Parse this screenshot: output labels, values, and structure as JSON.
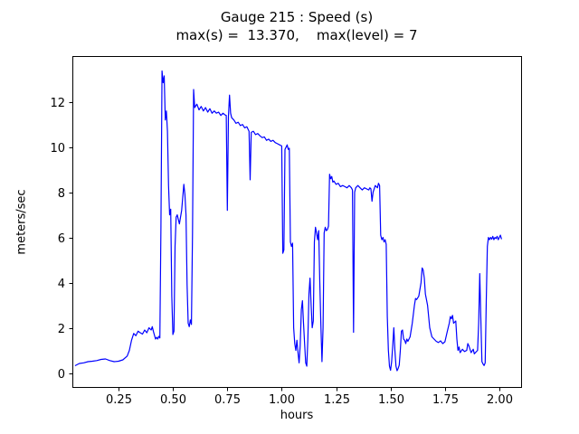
{
  "title": {
    "line1": "Gauge 215 : Speed (s)",
    "line2": "max(s) =  13.370,    max(level) = 7"
  },
  "chart_data": {
    "type": "line",
    "title": "Gauge 215 : Speed (s)",
    "subtitle": "max(s) =  13.370,    max(level) = 7",
    "xlabel": "hours",
    "ylabel": "meters/sec",
    "xlim": [
      0.038,
      2.1
    ],
    "ylim": [
      -0.62,
      14.03
    ],
    "grid": false,
    "legend": "none",
    "line_color": "#0000ff",
    "max_s": 13.37,
    "max_level": 7,
    "xticks": {
      "values": [
        0.25,
        0.5,
        0.75,
        1.0,
        1.25,
        1.5,
        1.75,
        2.0
      ],
      "labels": [
        "0.25",
        "0.50",
        "0.75",
        "1.00",
        "1.25",
        "1.50",
        "1.75",
        "2.00"
      ]
    },
    "yticks": {
      "values": [
        0,
        2,
        4,
        6,
        8,
        10,
        12
      ],
      "labels": [
        "0",
        "2",
        "4",
        "6",
        "8",
        "10",
        "12"
      ]
    },
    "series": [
      {
        "name": "speed",
        "points": [
          [
            0.05,
            0.32
          ],
          [
            0.07,
            0.42
          ],
          [
            0.09,
            0.45
          ],
          [
            0.11,
            0.5
          ],
          [
            0.13,
            0.52
          ],
          [
            0.15,
            0.55
          ],
          [
            0.17,
            0.6
          ],
          [
            0.19,
            0.62
          ],
          [
            0.21,
            0.55
          ],
          [
            0.23,
            0.5
          ],
          [
            0.25,
            0.52
          ],
          [
            0.27,
            0.58
          ],
          [
            0.29,
            0.75
          ],
          [
            0.3,
            1.0
          ],
          [
            0.31,
            1.45
          ],
          [
            0.32,
            1.75
          ],
          [
            0.33,
            1.65
          ],
          [
            0.34,
            1.85
          ],
          [
            0.35,
            1.78
          ],
          [
            0.36,
            1.72
          ],
          [
            0.37,
            1.9
          ],
          [
            0.38,
            1.78
          ],
          [
            0.39,
            2.0
          ],
          [
            0.4,
            1.9
          ],
          [
            0.405,
            2.05
          ],
          [
            0.41,
            1.85
          ],
          [
            0.42,
            1.5
          ],
          [
            0.425,
            1.58
          ],
          [
            0.43,
            1.5
          ],
          [
            0.435,
            1.62
          ],
          [
            0.44,
            1.55
          ],
          [
            0.445,
            6.5
          ],
          [
            0.45,
            13.37
          ],
          [
            0.455,
            12.85
          ],
          [
            0.46,
            13.15
          ],
          [
            0.465,
            11.2
          ],
          [
            0.47,
            11.6
          ],
          [
            0.475,
            10.7
          ],
          [
            0.48,
            8.3
          ],
          [
            0.485,
            7.0
          ],
          [
            0.49,
            7.25
          ],
          [
            0.495,
            3.4
          ],
          [
            0.5,
            1.7
          ],
          [
            0.505,
            1.85
          ],
          [
            0.51,
            5.6
          ],
          [
            0.515,
            6.9
          ],
          [
            0.52,
            7.0
          ],
          [
            0.53,
            6.6
          ],
          [
            0.54,
            7.2
          ],
          [
            0.55,
            8.35
          ],
          [
            0.555,
            7.9
          ],
          [
            0.56,
            7.0
          ],
          [
            0.565,
            3.9
          ],
          [
            0.57,
            2.2
          ],
          [
            0.575,
            2.05
          ],
          [
            0.58,
            2.35
          ],
          [
            0.585,
            2.15
          ],
          [
            0.59,
            6.2
          ],
          [
            0.595,
            12.55
          ],
          [
            0.6,
            11.75
          ],
          [
            0.61,
            11.9
          ],
          [
            0.62,
            11.65
          ],
          [
            0.63,
            11.8
          ],
          [
            0.64,
            11.6
          ],
          [
            0.65,
            11.75
          ],
          [
            0.66,
            11.55
          ],
          [
            0.67,
            11.7
          ],
          [
            0.68,
            11.5
          ],
          [
            0.69,
            11.6
          ],
          [
            0.7,
            11.5
          ],
          [
            0.71,
            11.55
          ],
          [
            0.72,
            11.4
          ],
          [
            0.73,
            11.5
          ],
          [
            0.74,
            11.42
          ],
          [
            0.745,
            11.4
          ],
          [
            0.75,
            7.2
          ],
          [
            0.755,
            11.35
          ],
          [
            0.76,
            12.3
          ],
          [
            0.765,
            11.5
          ],
          [
            0.77,
            11.3
          ],
          [
            0.78,
            11.2
          ],
          [
            0.79,
            11.05
          ],
          [
            0.8,
            11.1
          ],
          [
            0.81,
            10.95
          ],
          [
            0.82,
            11.0
          ],
          [
            0.83,
            10.85
          ],
          [
            0.84,
            10.9
          ],
          [
            0.85,
            10.7
          ],
          [
            0.855,
            8.55
          ],
          [
            0.86,
            10.65
          ],
          [
            0.87,
            10.7
          ],
          [
            0.88,
            10.55
          ],
          [
            0.89,
            10.6
          ],
          [
            0.9,
            10.5
          ],
          [
            0.91,
            10.42
          ],
          [
            0.92,
            10.45
          ],
          [
            0.93,
            10.3
          ],
          [
            0.94,
            10.35
          ],
          [
            0.95,
            10.25
          ],
          [
            0.96,
            10.3
          ],
          [
            0.97,
            10.2
          ],
          [
            0.98,
            10.15
          ],
          [
            0.99,
            10.1
          ],
          [
            1.0,
            10.05
          ],
          [
            1.005,
            5.3
          ],
          [
            1.01,
            5.45
          ],
          [
            1.015,
            9.9
          ],
          [
            1.02,
            10.0
          ],
          [
            1.025,
            10.1
          ],
          [
            1.03,
            9.9
          ],
          [
            1.035,
            9.95
          ],
          [
            1.04,
            5.8
          ],
          [
            1.045,
            5.6
          ],
          [
            1.05,
            5.75
          ],
          [
            1.055,
            2.0
          ],
          [
            1.06,
            1.3
          ],
          [
            1.065,
            1.0
          ],
          [
            1.07,
            1.45
          ],
          [
            1.075,
            0.9
          ],
          [
            1.08,
            0.45
          ],
          [
            1.085,
            1.2
          ],
          [
            1.09,
            2.8
          ],
          [
            1.095,
            3.2
          ],
          [
            1.1,
            2.2
          ],
          [
            1.105,
            1.3
          ],
          [
            1.11,
            0.45
          ],
          [
            1.115,
            0.3
          ],
          [
            1.12,
            1.5
          ],
          [
            1.125,
            3.5
          ],
          [
            1.13,
            4.2
          ],
          [
            1.135,
            3.0
          ],
          [
            1.14,
            2.0
          ],
          [
            1.145,
            2.3
          ],
          [
            1.15,
            5.8
          ],
          [
            1.155,
            6.45
          ],
          [
            1.16,
            6.2
          ],
          [
            1.165,
            5.9
          ],
          [
            1.17,
            6.3
          ],
          [
            1.175,
            4.0
          ],
          [
            1.18,
            2.1
          ],
          [
            1.185,
            0.5
          ],
          [
            1.19,
            2.0
          ],
          [
            1.195,
            6.2
          ],
          [
            1.2,
            6.45
          ],
          [
            1.205,
            6.3
          ],
          [
            1.21,
            6.35
          ],
          [
            1.215,
            6.5
          ],
          [
            1.22,
            8.8
          ],
          [
            1.225,
            8.6
          ],
          [
            1.23,
            8.7
          ],
          [
            1.235,
            8.45
          ],
          [
            1.24,
            8.5
          ],
          [
            1.25,
            8.35
          ],
          [
            1.26,
            8.4
          ],
          [
            1.27,
            8.25
          ],
          [
            1.28,
            8.3
          ],
          [
            1.29,
            8.25
          ],
          [
            1.3,
            8.2
          ],
          [
            1.31,
            8.3
          ],
          [
            1.32,
            8.2
          ],
          [
            1.325,
            8.1
          ],
          [
            1.33,
            1.8
          ],
          [
            1.335,
            8.0
          ],
          [
            1.34,
            8.2
          ],
          [
            1.35,
            8.3
          ],
          [
            1.36,
            8.2
          ],
          [
            1.37,
            8.1
          ],
          [
            1.38,
            8.2
          ],
          [
            1.39,
            8.15
          ],
          [
            1.4,
            8.1
          ],
          [
            1.405,
            8.2
          ],
          [
            1.41,
            8.15
          ],
          [
            1.415,
            7.6
          ],
          [
            1.42,
            8.0
          ],
          [
            1.43,
            8.3
          ],
          [
            1.44,
            8.2
          ],
          [
            1.445,
            8.4
          ],
          [
            1.45,
            8.3
          ],
          [
            1.455,
            6.1
          ],
          [
            1.46,
            5.9
          ],
          [
            1.465,
            6.0
          ],
          [
            1.47,
            5.8
          ],
          [
            1.475,
            5.9
          ],
          [
            1.48,
            5.7
          ],
          [
            1.485,
            2.5
          ],
          [
            1.49,
            1.0
          ],
          [
            1.495,
            0.3
          ],
          [
            1.5,
            0.12
          ],
          [
            1.505,
            0.5
          ],
          [
            1.51,
            1.2
          ],
          [
            1.515,
            2.0
          ],
          [
            1.52,
            1.0
          ],
          [
            1.525,
            0.3
          ],
          [
            1.53,
            0.1
          ],
          [
            1.535,
            0.2
          ],
          [
            1.54,
            0.35
          ],
          [
            1.545,
            1.0
          ],
          [
            1.55,
            1.85
          ],
          [
            1.555,
            1.9
          ],
          [
            1.56,
            1.5
          ],
          [
            1.565,
            1.45
          ],
          [
            1.57,
            1.3
          ],
          [
            1.575,
            1.5
          ],
          [
            1.58,
            1.4
          ],
          [
            1.59,
            1.6
          ],
          [
            1.6,
            2.2
          ],
          [
            1.61,
            3.0
          ],
          [
            1.615,
            3.3
          ],
          [
            1.62,
            3.25
          ],
          [
            1.63,
            3.4
          ],
          [
            1.64,
            4.0
          ],
          [
            1.645,
            4.65
          ],
          [
            1.65,
            4.55
          ],
          [
            1.655,
            4.2
          ],
          [
            1.66,
            3.5
          ],
          [
            1.67,
            3.0
          ],
          [
            1.68,
            2.0
          ],
          [
            1.69,
            1.6
          ],
          [
            1.7,
            1.5
          ],
          [
            1.71,
            1.4
          ],
          [
            1.72,
            1.35
          ],
          [
            1.73,
            1.42
          ],
          [
            1.74,
            1.3
          ],
          [
            1.75,
            1.38
          ],
          [
            1.76,
            1.8
          ],
          [
            1.77,
            2.2
          ],
          [
            1.775,
            2.5
          ],
          [
            1.78,
            2.4
          ],
          [
            1.785,
            2.55
          ],
          [
            1.79,
            2.2
          ],
          [
            1.8,
            2.3
          ],
          [
            1.805,
            1.5
          ],
          [
            1.81,
            1.0
          ],
          [
            1.815,
            1.15
          ],
          [
            1.82,
            0.9
          ],
          [
            1.83,
            1.05
          ],
          [
            1.84,
            0.95
          ],
          [
            1.85,
            1.0
          ],
          [
            1.855,
            1.3
          ],
          [
            1.86,
            1.2
          ],
          [
            1.87,
            0.9
          ],
          [
            1.88,
            1.05
          ],
          [
            1.885,
            0.85
          ],
          [
            1.89,
            0.9
          ],
          [
            1.9,
            1.0
          ],
          [
            1.905,
            2.2
          ],
          [
            1.91,
            4.4
          ],
          [
            1.915,
            2.4
          ],
          [
            1.92,
            0.5
          ],
          [
            1.925,
            0.4
          ],
          [
            1.93,
            0.33
          ],
          [
            1.935,
            0.45
          ],
          [
            1.94,
            3.2
          ],
          [
            1.945,
            5.6
          ],
          [
            1.95,
            6.0
          ],
          [
            1.955,
            5.9
          ],
          [
            1.96,
            6.0
          ],
          [
            1.965,
            5.92
          ],
          [
            1.97,
            6.05
          ],
          [
            1.975,
            5.9
          ],
          [
            1.98,
            6.0
          ],
          [
            1.985,
            5.95
          ],
          [
            1.99,
            6.05
          ],
          [
            1.995,
            5.9
          ],
          [
            2.0,
            6.0
          ],
          [
            2.005,
            6.1
          ],
          [
            2.01,
            5.92
          ]
        ]
      }
    ]
  }
}
